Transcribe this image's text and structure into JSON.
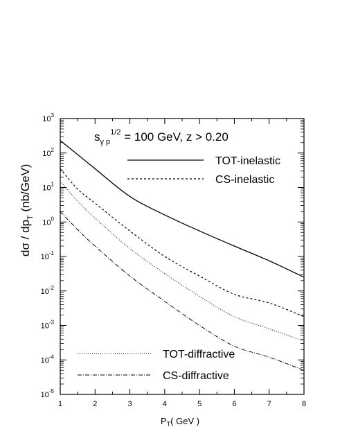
{
  "chart_data": {
    "type": "line",
    "annotation": {
      "s": "s",
      "sub": "γ p",
      "sup": "1/2",
      "rest": " = 100 GeV,  z > 0.20"
    },
    "xlabel": {
      "main": "P",
      "sub": "T",
      "rest": "( GeV )"
    },
    "ylabel": {
      "main": "dσ / dp",
      "sub": "T",
      "rest": " (nb/GeV)"
    },
    "xlim": [
      1,
      8
    ],
    "ylim": [
      1e-05,
      1000
    ],
    "y_scale": "log",
    "x_ticks": [
      "1",
      "2",
      "3",
      "4",
      "5",
      "6",
      "7",
      "8"
    ],
    "y_ticks": [
      {
        "base": "10",
        "exp": "-5"
      },
      {
        "base": "10",
        "exp": "-4"
      },
      {
        "base": "10",
        "exp": "-3"
      },
      {
        "base": "10",
        "exp": "-2"
      },
      {
        "base": "10",
        "exp": "-1"
      },
      {
        "base": "10",
        "exp": "0"
      },
      {
        "base": "10",
        "exp": "1"
      },
      {
        "base": "10",
        "exp": "2"
      },
      {
        "base": "10",
        "exp": "3"
      }
    ],
    "series": [
      {
        "name": "TOT-inelastic",
        "style": "solid",
        "x": [
          1,
          1.5,
          2,
          3,
          4,
          5,
          6,
          7,
          8
        ],
        "y": [
          230,
          90,
          35,
          5.5,
          1.6,
          0.55,
          0.2,
          0.075,
          0.025
        ]
      },
      {
        "name": "CS-inelastic",
        "style": "dashed",
        "x": [
          1,
          1.5,
          2,
          3,
          4,
          5,
          6,
          7,
          8
        ],
        "y": [
          35,
          9,
          3.5,
          0.55,
          0.1,
          0.027,
          0.008,
          0.0045,
          0.0018
        ]
      },
      {
        "name": "TOT-diffractive",
        "style": "dotted",
        "x": [
          1,
          1.5,
          2,
          3,
          4,
          5,
          6,
          7,
          8
        ],
        "y": [
          15,
          4,
          1.3,
          0.17,
          0.032,
          0.007,
          0.0018,
          0.0008,
          0.00035
        ]
      },
      {
        "name": "CS-diffractive",
        "style": "dashdot",
        "x": [
          1,
          1.5,
          2,
          3,
          4,
          5,
          6,
          7,
          8
        ],
        "y": [
          2,
          0.6,
          0.2,
          0.027,
          0.005,
          0.001,
          0.00025,
          0.00012,
          5e-05
        ]
      }
    ],
    "legend": [
      {
        "label": "TOT-inelastic",
        "style": "solid"
      },
      {
        "label": "CS-inelastic",
        "style": "dashed"
      },
      {
        "label": "TOT-diffractive",
        "style": "dotted"
      },
      {
        "label": "CS-diffractive",
        "style": "dashdot"
      }
    ],
    "grid": false
  }
}
